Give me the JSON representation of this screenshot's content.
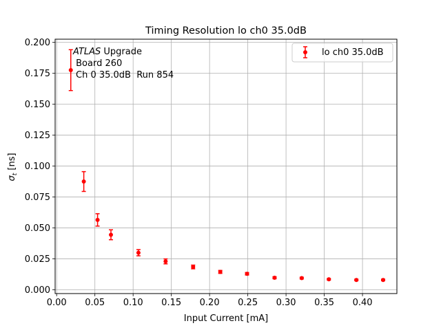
{
  "chart_data": {
    "type": "scatter",
    "title": "Timing Resolution lo ch0 35.0dB",
    "xlabel": "Input Current [mA]",
    "ylabel_main": "σ",
    "ylabel_sub": "t",
    "ylabel_unit": " [ns]",
    "xlim": [
      -0.002,
      0.445
    ],
    "ylim": [
      -0.003,
      0.2025
    ],
    "x_ticks": [
      0.0,
      0.05,
      0.1,
      0.15,
      0.2,
      0.25,
      0.3,
      0.35,
      0.4
    ],
    "x_tick_labels": [
      "0.00",
      "0.05",
      "0.10",
      "0.15",
      "0.20",
      "0.25",
      "0.30",
      "0.35",
      "0.40"
    ],
    "y_ticks": [
      0.0,
      0.025,
      0.05,
      0.075,
      0.1,
      0.125,
      0.15,
      0.175,
      0.2
    ],
    "y_tick_labels": [
      "0.000",
      "0.025",
      "0.050",
      "0.075",
      "0.100",
      "0.125",
      "0.150",
      "0.175",
      "0.200"
    ],
    "grid": true,
    "legend_position": "top-right",
    "series": [
      {
        "name": "lo ch0 35.0dB",
        "color": "#ff0000",
        "x": [
          0.0185,
          0.0355,
          0.0535,
          0.071,
          0.107,
          0.1425,
          0.1785,
          0.214,
          0.249,
          0.285,
          0.3205,
          0.356,
          0.392,
          0.427
        ],
        "y": [
          0.1775,
          0.0875,
          0.0565,
          0.0445,
          0.03,
          0.023,
          0.0185,
          0.0145,
          0.013,
          0.0098,
          0.0095,
          0.0085,
          0.008,
          0.008
        ],
        "yerr": [
          0.0165,
          0.008,
          0.005,
          0.004,
          0.0025,
          0.002,
          0.0015,
          0.0012,
          0.001,
          0.0008,
          0.0007,
          0.0006,
          0.0006,
          0.0006
        ]
      }
    ],
    "annotation": {
      "experiment": "ATLAS",
      "experiment_suffix": " Upgrade",
      "line2": " Board 260",
      "line3": "Ch 0 35.0dB  Run 854"
    }
  }
}
